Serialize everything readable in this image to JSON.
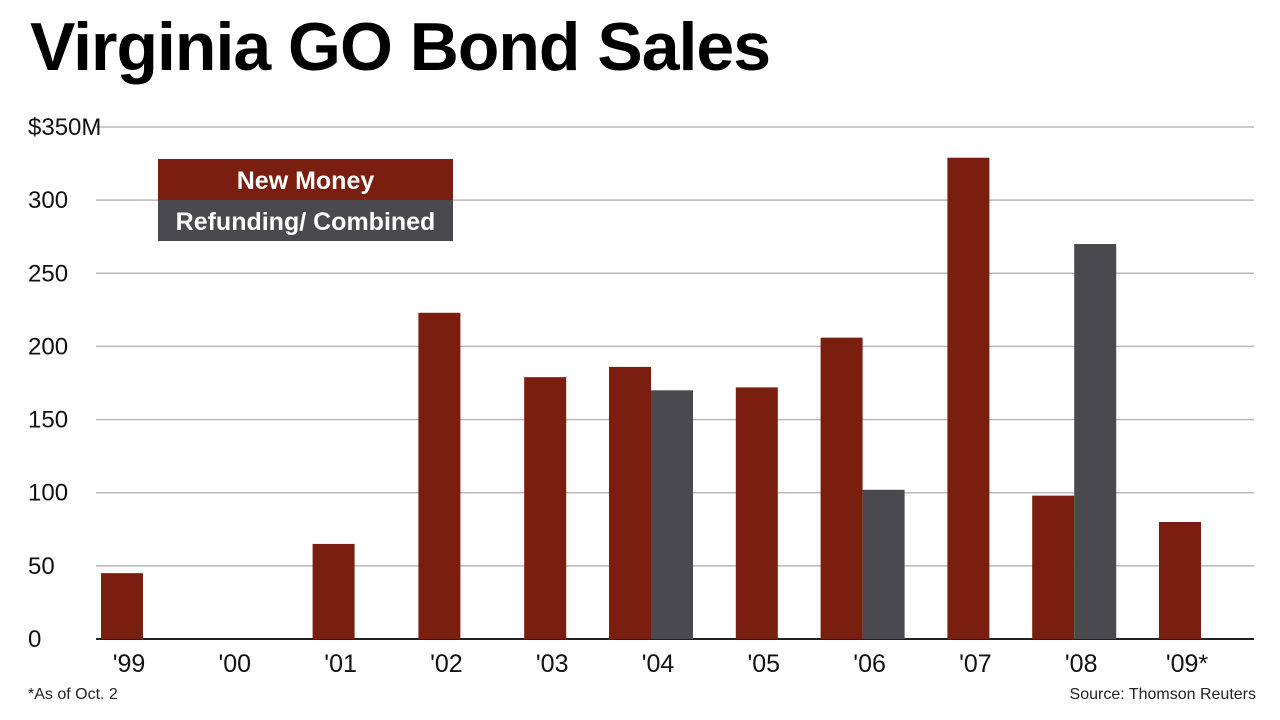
{
  "chart_data": {
    "type": "bar",
    "title": "Virginia GO Bond Sales",
    "categories": [
      "'99",
      "'00",
      "'01",
      "'02",
      "'03",
      "'04",
      "'05",
      "'06",
      "'07",
      "'08",
      "'09*"
    ],
    "series": [
      {
        "name": "New Money",
        "color": "#7a1e10",
        "values": [
          45,
          null,
          65,
          223,
          179,
          186,
          172,
          206,
          329,
          98,
          80
        ]
      },
      {
        "name": "Refunding/ Combined",
        "color": "#4a4a4e",
        "values": [
          null,
          null,
          null,
          null,
          null,
          170,
          null,
          102,
          null,
          270,
          null
        ]
      }
    ],
    "y_ticks": [
      "$350M",
      "300",
      "250",
      "200",
      "150",
      "100",
      "50",
      "0"
    ],
    "y_tick_values": [
      350,
      300,
      250,
      200,
      150,
      100,
      50,
      0
    ],
    "ylim": [
      0,
      350
    ],
    "grid": true,
    "legend_position": "top-left",
    "footnote": "*As of Oct. 2",
    "source": "Source: Thomson Reuters"
  }
}
